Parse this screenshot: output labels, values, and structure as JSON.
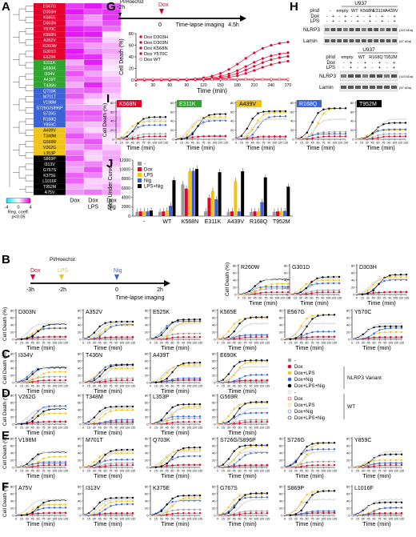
{
  "panels": {
    "A": "A",
    "B": "B",
    "C": "C",
    "D": "D",
    "E": "E",
    "F": "F",
    "G": "G",
    "H": "H",
    "I": "I",
    "J": "J"
  },
  "heatmap": {
    "column_labels": [
      "Dox",
      "Dox LPS",
      "Dox Nig"
    ],
    "legend_ticks": [
      "-4",
      "0",
      "4"
    ],
    "legend_title": "Reg. coeff.",
    "legend_note": "p<0.05",
    "groups": [
      {
        "color": "#e5002c",
        "rows": [
          "E567G",
          "D303H",
          "K565E",
          "D303N",
          "Y570C",
          "K568N",
          "A352V",
          "R260W",
          "G301D",
          "E525K"
        ]
      },
      {
        "color": "#2ea52e",
        "rows": [
          "E311K",
          "E690K",
          "I334V",
          "A439T",
          "T436N"
        ]
      },
      {
        "color": "#3b63d6",
        "rows": [
          "Q703K",
          "M701T",
          "V198M",
          "S726G/S896P",
          "S726G",
          "R168Q",
          "Y859C"
        ]
      },
      {
        "color": "#f0c419",
        "rows": [
          "A439V",
          "T348M",
          "G569R",
          "V262G",
          "L353P"
        ]
      },
      {
        "color": "#000000",
        "rows": [
          "S869P",
          "I313V",
          "G767S",
          "K375E",
          "L1016F",
          "T952M",
          "A75V"
        ]
      }
    ]
  },
  "panelG": {
    "timeline": {
      "start": "-2h",
      "zero": "0",
      "end": "4.5h",
      "top_label": "PI/Hoechst",
      "dox": "Dox",
      "imaging": "Time-lapse imaging"
    },
    "ylabel": "Cell Death (%)",
    "xlabel": "Time (min)",
    "yticks": [
      "0",
      "20",
      "40",
      "60",
      "80"
    ],
    "xticks": [
      "0",
      "30",
      "60",
      "90",
      "120",
      "150",
      "180",
      "210",
      "240",
      "270"
    ],
    "legend": [
      {
        "name": "Dox D303H",
        "color": "#e5002c"
      },
      {
        "name": "Dox D303N",
        "color": "#e5002c"
      },
      {
        "name": "Dox K568N",
        "color": "#e5002c"
      },
      {
        "name": "Dox Y570C",
        "color": "#e5002c"
      },
      {
        "name": "Dox WT",
        "color": "#e5002c"
      }
    ]
  },
  "panelH": {
    "blot1": {
      "header": "U937",
      "pind": "pInd",
      "lanes": [
        "-",
        "empty",
        "WT",
        "K568N",
        "E311K",
        "A439V"
      ],
      "dox": "Dox",
      "lps": "LPS",
      "nlrp3": "NLRP3",
      "nlrp3_kda": "(115 kDa)",
      "lamin": "Lamin",
      "lamin_kda": "(67 kDa)"
    },
    "blot2": {
      "header": "U937",
      "pind": "pInd",
      "lanes": [
        "empty",
        "WT",
        "R168Q",
        "T952M"
      ],
      "dox": "Dox",
      "lps": "LPS",
      "nlrp3": "NLRP3",
      "nlrp3_kda": "(115 kDa)",
      "lamin": "Lamin",
      "lamin_kda": "(67 kDa)"
    }
  },
  "panelI": {
    "ylabel": "Cell Death (%)",
    "xlabel": "Time (min)",
    "variants": [
      {
        "name": "K568N",
        "bg": "#e5002c",
        "fg": "#ffffff"
      },
      {
        "name": "E311K",
        "bg": "#2ea52e",
        "fg": "#ffffff"
      },
      {
        "name": "A439V",
        "bg": "#f0c419",
        "fg": "#000000"
      },
      {
        "name": "R168Q",
        "bg": "#3b63d6",
        "fg": "#ffffff"
      },
      {
        "name": "T952M",
        "bg": "#000000",
        "fg": "#ffffff"
      }
    ]
  },
  "chart_data": {
    "type": "bar",
    "title": "",
    "ylabel": "Area Under Curve",
    "categories": [
      "-",
      "WT",
      "K568N",
      "E311K",
      "A439V",
      "R168Q",
      "T952M"
    ],
    "ylim": [
      0,
      12000
    ],
    "yticks": [
      "0",
      "2000",
      "4000",
      "6000",
      "8000",
      "10000",
      "12000"
    ],
    "series": [
      {
        "name": "-",
        "color": "#9a9a9a",
        "values": [
          900,
          900,
          6800,
          1000,
          900,
          900,
          900
        ]
      },
      {
        "name": "Dox",
        "color": "#e5002c",
        "values": [
          1000,
          1000,
          5900,
          3900,
          1000,
          1000,
          1000
        ]
      },
      {
        "name": "LPS",
        "color": "#f0c419",
        "values": [
          1000,
          1200,
          9600,
          5400,
          7500,
          1000,
          1100
        ]
      },
      {
        "name": "Nig",
        "color": "#3b63d6",
        "values": [
          1000,
          2200,
          9700,
          3600,
          1000,
          3000,
          1100
        ]
      },
      {
        "name": "LPS+Nig",
        "color": "#000000",
        "values": [
          1200,
          7700,
          10100,
          9400,
          9600,
          8300,
          6300
        ]
      }
    ]
  },
  "panelB": {
    "timeline": {
      "minus3": "-3h",
      "minus2": "-2h",
      "zero": "0",
      "end": "2h",
      "dox": "Dox",
      "lps": "LPS",
      "pi": "PI/Hoechst",
      "nig": "Nig",
      "imaging": "Time-lapse imaging"
    }
  },
  "small_plots": {
    "ylabel": "Cell Death (%)",
    "xlabel": "Time (min)",
    "yticks": [
      "0",
      "20",
      "40",
      "60",
      "80"
    ],
    "xticks": [
      "0",
      "15",
      "30",
      "45",
      "60",
      "75",
      "90",
      "105",
      "120",
      "135"
    ],
    "rows": [
      {
        "label": "",
        "names": [
          "R260W",
          "G301D",
          "D303H"
        ]
      },
      {
        "label": "",
        "names": [
          "D303N",
          "A352V",
          "E525K",
          "K565E",
          "E567G",
          "Y570C"
        ]
      },
      {
        "label": "C",
        "names": [
          "I334V",
          "T436N",
          "A439T",
          "E690K"
        ]
      },
      {
        "label": "D",
        "names": [
          "V262G",
          "T348M",
          "L353P",
          "G569R"
        ]
      },
      {
        "label": "E",
        "names": [
          "V198M",
          "M701T",
          "Q703K",
          "S726G/S896P",
          "S726G",
          "Y859C"
        ]
      },
      {
        "label": "F",
        "names": [
          "A75V",
          "I313V",
          "K375E",
          "G767S",
          "S869P",
          "L1016F"
        ]
      }
    ]
  },
  "legend_main": {
    "entries": [
      "-",
      "Dox",
      "Dox+LPS",
      "Dox+Nig",
      "Dox+LPS+Nig",
      "-",
      "Dox",
      "Dox+LPS",
      "Dox+Nig",
      "Dox+LPS+Nig"
    ],
    "group1": "NLRP3 Variant",
    "group2": "WT"
  }
}
